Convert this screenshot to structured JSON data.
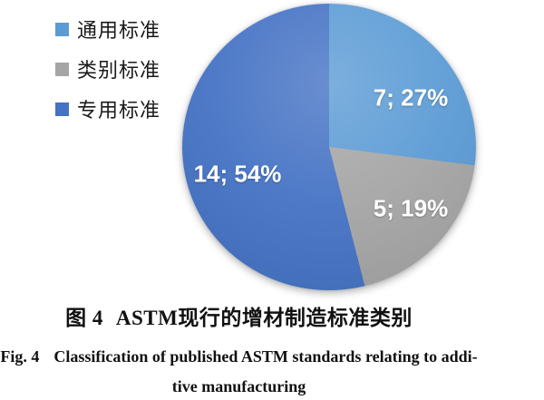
{
  "chart_data": {
    "type": "pie",
    "title": "图 4 ASTM现行的增材制造标准类别",
    "title_en": "Fig. 4 Classification of published ASTM standards relating to additive manufacturing",
    "legend_position": "upper-left",
    "start_angle_deg": 0,
    "direction": "clockwise",
    "total": 26,
    "slices": [
      {
        "label": "通用标准",
        "value": 7,
        "pct": 27,
        "color": "#5B9BD5",
        "data_label": "7; 27%"
      },
      {
        "label": "类别标准",
        "value": 5,
        "pct": 19,
        "color": "#A5A5A5",
        "data_label": "5; 19%"
      },
      {
        "label": "专用标准",
        "value": 14,
        "pct": 54,
        "color": "#4472C4",
        "data_label": "14; 54%"
      }
    ]
  },
  "caption": {
    "cn_prefix": "图 4",
    "cn_title": "ASTM现行的增材制造标准类别",
    "en_prefix": "Fig. 4",
    "en_line1": "Classification of published ASTM standards relating to addi-",
    "en_line2": "tive manufacturing"
  }
}
